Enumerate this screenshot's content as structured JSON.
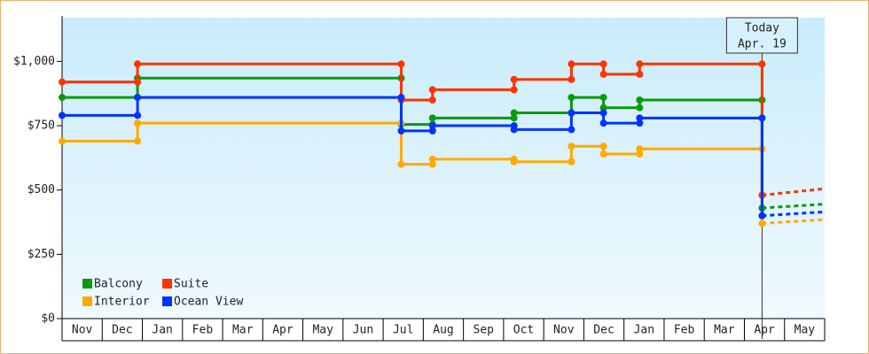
{
  "chart_data": {
    "type": "step",
    "categories": [
      "Nov",
      "Dec",
      "Jan",
      "Feb",
      "Mar",
      "Apr",
      "May",
      "Jun",
      "Jul",
      "Aug",
      "Sep",
      "Oct",
      "Nov",
      "Dec",
      "Jan",
      "Feb",
      "Mar",
      "Apr",
      "May"
    ],
    "xlim": [
      0,
      19
    ],
    "ylim": [
      0,
      1170
    ],
    "yticks": [
      {
        "value": 0,
        "label": "$0"
      },
      {
        "value": 250,
        "label": "$250"
      },
      {
        "value": 500,
        "label": "$500"
      },
      {
        "value": 750,
        "label": "$750"
      },
      {
        "value": 1000,
        "label": "$1,000"
      }
    ],
    "legend": "lower left",
    "today": {
      "x": 17.44,
      "label": "Today",
      "date": "Apr. 19"
    },
    "series": [
      {
        "name": "Balcony",
        "color": "#0a9a0a",
        "x": [
          0,
          1.88,
          8.45,
          9.23,
          11.26,
          12.69,
          13.49,
          14.39,
          17.44
        ],
        "values": [
          860,
          935,
          755,
          780,
          800,
          860,
          820,
          850,
          430
        ],
        "forecast": {
          "x": 19,
          "value": 445
        }
      },
      {
        "name": "Suite",
        "color": "#ff3300",
        "x": [
          0,
          1.88,
          8.45,
          9.23,
          11.26,
          12.69,
          13.49,
          14.39,
          17.44
        ],
        "values": [
          920,
          990,
          850,
          890,
          930,
          990,
          950,
          990,
          480
        ],
        "forecast": {
          "x": 19,
          "value": 505
        }
      },
      {
        "name": "Interior",
        "color": "#ffaa00",
        "x": [
          0,
          1.88,
          8.45,
          9.23,
          11.26,
          12.69,
          13.49,
          14.39,
          17.44
        ],
        "values": [
          690,
          760,
          600,
          620,
          610,
          670,
          640,
          660,
          370
        ],
        "forecast": {
          "x": 19,
          "value": 385
        }
      },
      {
        "name": "Ocean View",
        "color": "#0033ff",
        "x": [
          0,
          1.88,
          8.45,
          9.23,
          11.26,
          12.69,
          13.49,
          14.39,
          17.44
        ],
        "values": [
          790,
          860,
          730,
          750,
          735,
          800,
          760,
          780,
          400
        ],
        "forecast": {
          "x": 19,
          "value": 415
        }
      }
    ]
  }
}
